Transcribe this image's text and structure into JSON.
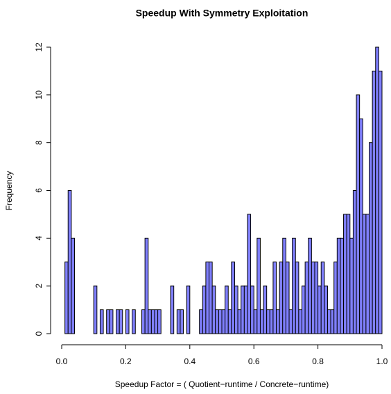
{
  "chart_data": {
    "type": "histogram",
    "title": "Speedup With Symmetry Exploitation",
    "x_label": "Speedup Factor = ( Quotient−runtime / Concrete−runtime)",
    "y_label": "Frequency",
    "color": "#8080ff",
    "bins": [
      0.01,
      0.02,
      0.03,
      0.04,
      0.05,
      0.06,
      0.07,
      0.08,
      0.09,
      0.1,
      0.11,
      0.12,
      0.13,
      0.14,
      0.15,
      0.16,
      0.17,
      0.18,
      0.19,
      0.2,
      0.21,
      0.22,
      0.23,
      0.24,
      0.25,
      0.26,
      0.27,
      0.28,
      0.29,
      0.3,
      0.31,
      0.32,
      0.33,
      0.34,
      0.35,
      0.36,
      0.37,
      0.38,
      0.39,
      0.4,
      0.41,
      0.42,
      0.43,
      0.44,
      0.45,
      0.46,
      0.47,
      0.48,
      0.49,
      0.5,
      0.51,
      0.52,
      0.53,
      0.54,
      0.55,
      0.56,
      0.57,
      0.58,
      0.59,
      0.6,
      0.61,
      0.62,
      0.63,
      0.64,
      0.65,
      0.66,
      0.67,
      0.68,
      0.69,
      0.7,
      0.71,
      0.72,
      0.73,
      0.74,
      0.75,
      0.76,
      0.77,
      0.78,
      0.79,
      0.8,
      0.81,
      0.82,
      0.83,
      0.84,
      0.85,
      0.86,
      0.87,
      0.88,
      0.89,
      0.9,
      0.91,
      0.92,
      0.93,
      0.94,
      0.95,
      0.96,
      0.97,
      0.98,
      0.99,
      1.0
    ],
    "values": [
      3,
      6,
      4,
      0,
      0,
      0,
      0,
      0,
      0,
      2,
      0,
      1,
      0,
      1,
      1,
      0,
      1,
      1,
      0,
      1,
      0,
      1,
      0,
      0,
      1,
      4,
      1,
      1,
      1,
      1,
      0,
      0,
      0,
      2,
      0,
      1,
      1,
      0,
      2,
      0,
      0,
      0,
      1,
      2,
      3,
      3,
      2,
      1,
      1,
      1,
      2,
      1,
      3,
      2,
      1,
      2,
      2,
      5,
      2,
      1,
      4,
      1,
      2,
      1,
      1,
      3,
      1,
      3,
      4,
      3,
      1,
      4,
      3,
      1,
      2,
      3,
      4,
      3,
      3,
      2,
      3,
      2,
      1,
      1,
      3,
      4,
      4,
      5,
      5,
      4,
      6,
      10,
      9,
      5,
      5,
      8,
      11,
      12,
      11
    ],
    "xlim": [
      0,
      1
    ],
    "xticks": [
      {
        "value": 0,
        "label": "0.0"
      },
      0.2,
      0.4,
      0.6,
      0.8,
      {
        "value": 1,
        "label": "1.0"
      }
    ],
    "ylim": [
      0,
      12
    ],
    "yticks": [
      0,
      2,
      4,
      6,
      8,
      10,
      12
    ]
  }
}
